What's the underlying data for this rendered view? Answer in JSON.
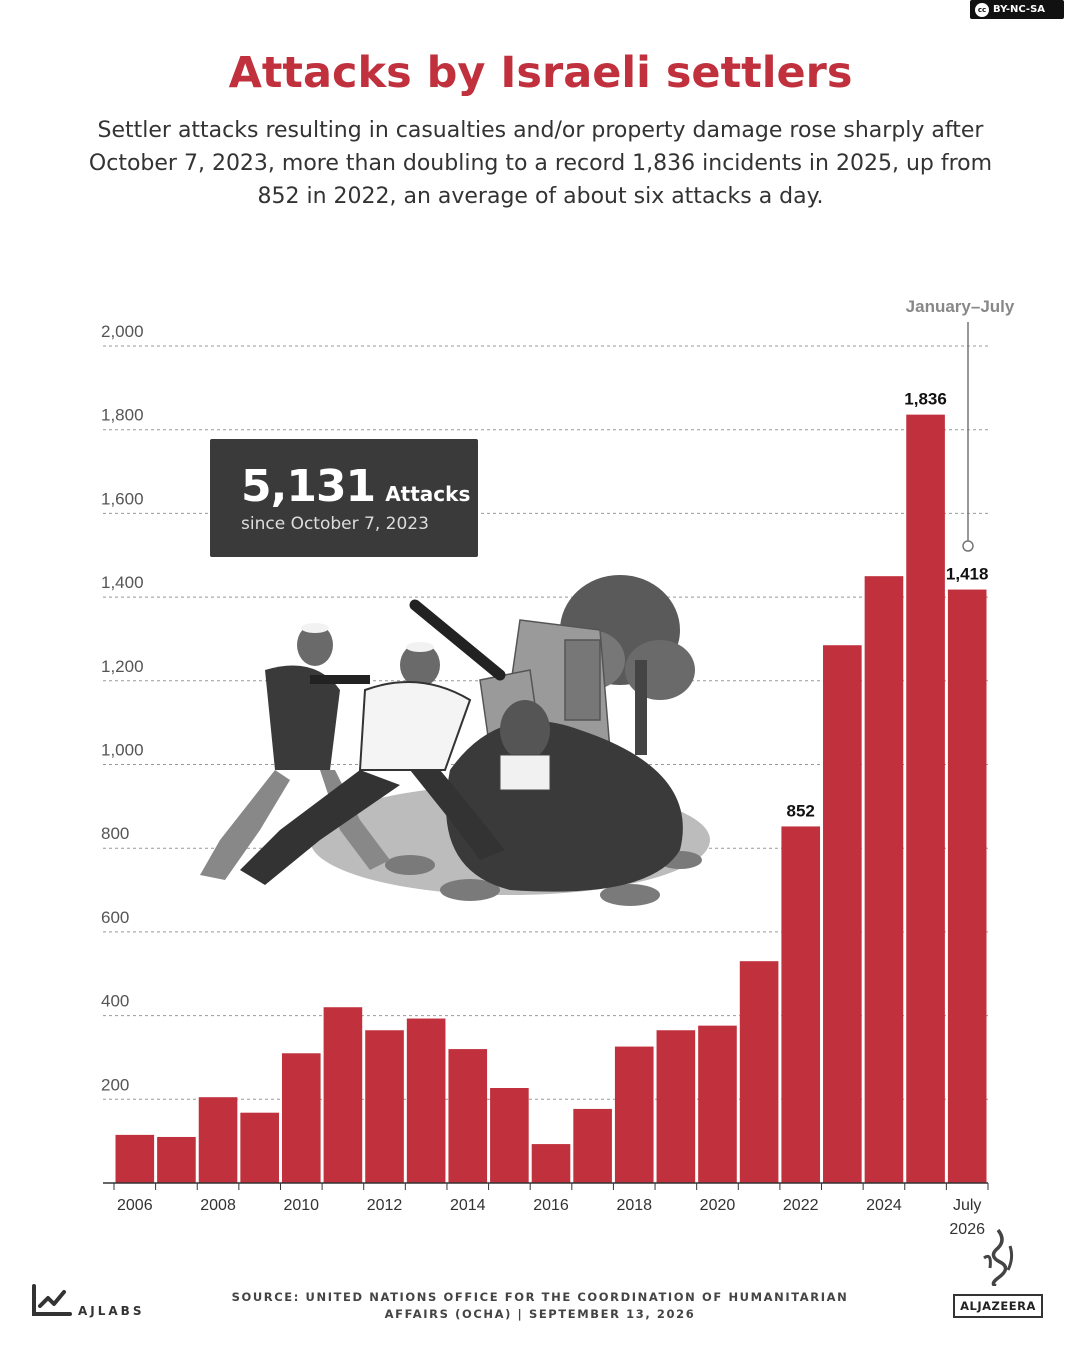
{
  "license": {
    "label": "BY-NC-SA",
    "cc_glyph": "cc"
  },
  "header": {
    "title": "Attacks by Israeli settlers",
    "subtitle": "Settler attacks resulting in casualties and/or property damage rose sharply after October 7, 2023, more than doubling to a record 1,836 incidents in 2025, up from 852 in 2022, an average of about six attacks a day."
  },
  "callout": {
    "number": "5,131",
    "unit": "Attacks",
    "since": "since October 7, 2023"
  },
  "annotation": {
    "text": "January–July"
  },
  "illustration": {
    "icon": "settler-attack-illustration-icon"
  },
  "chart_data": {
    "type": "bar",
    "x": [
      2006,
      2007,
      2008,
      2009,
      2010,
      2011,
      2012,
      2013,
      2014,
      2015,
      2016,
      2017,
      2018,
      2019,
      2020,
      2021,
      2022,
      2023,
      2024,
      2025,
      2026
    ],
    "values": [
      115,
      110,
      205,
      168,
      310,
      420,
      365,
      393,
      320,
      227,
      93,
      177,
      326,
      365,
      376,
      530,
      852,
      1285,
      1450,
      1836,
      1418
    ],
    "tick_labels": [
      {
        "x": 2006,
        "label": "2006"
      },
      {
        "x": 2008,
        "label": "2008"
      },
      {
        "x": 2010,
        "label": "2010"
      },
      {
        "x": 2012,
        "label": "2012"
      },
      {
        "x": 2014,
        "label": "2014"
      },
      {
        "x": 2016,
        "label": "2016"
      },
      {
        "x": 2018,
        "label": "2018"
      },
      {
        "x": 2020,
        "label": "2020"
      },
      {
        "x": 2022,
        "label": "2022"
      },
      {
        "x": 2024,
        "label": "2024"
      },
      {
        "x": 2026,
        "label": "July"
      }
    ],
    "last_tick_second_line": "2026",
    "data_labels": [
      {
        "x": 2022,
        "label": "852"
      },
      {
        "x": 2025,
        "label": "1,836"
      },
      {
        "x": 2026,
        "label": "1,418"
      }
    ],
    "y_ticks": [
      {
        "value": 200,
        "label": "200"
      },
      {
        "value": 400,
        "label": "400"
      },
      {
        "value": 600,
        "label": "600"
      },
      {
        "value": 800,
        "label": "800"
      },
      {
        "value": 1000,
        "label": "1,000"
      },
      {
        "value": 1200,
        "label": "1,200"
      },
      {
        "value": 1400,
        "label": "1,400"
      },
      {
        "value": 1600,
        "label": "1,600"
      },
      {
        "value": 1800,
        "label": "1,800"
      },
      {
        "value": 2000,
        "label": "2,000"
      }
    ],
    "ylim": [
      0,
      2000
    ],
    "grid": true,
    "bar_color": "#c0313d",
    "title": "",
    "xlabel": "",
    "ylabel": ""
  },
  "footer": {
    "source_line1": "SOURCE: UNITED NATIONS OFFICE FOR THE COORDINATION OF HUMANITARIAN",
    "source_line2": "AFFAIRS (OCHA) | SEPTEMBER 13, 2026",
    "ajlabs": "AJLABS",
    "aljazeera": "ALJAZEERA"
  }
}
